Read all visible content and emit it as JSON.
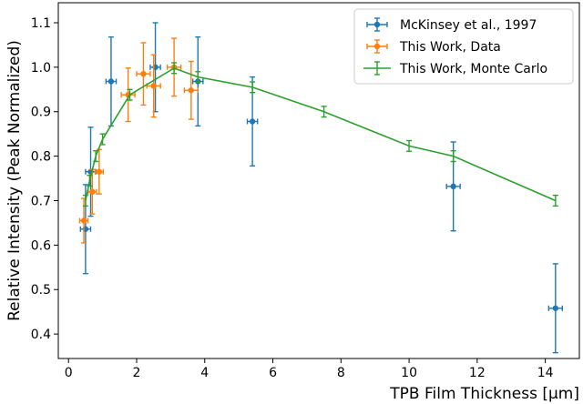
{
  "chart_data": {
    "type": "scatter",
    "title": "",
    "xlabel": "TPB Film Thickness [μm]",
    "ylabel": "Relative Intensity (Peak Normalized)",
    "xlim": [
      -0.3,
      15.0
    ],
    "ylim": [
      0.345,
      1.145
    ],
    "xticks": [
      0,
      2,
      4,
      6,
      8,
      10,
      12,
      14
    ],
    "yticks": [
      0.4,
      0.5,
      0.6,
      0.7,
      0.8,
      0.9,
      1.0,
      1.1
    ],
    "xtick_labels": [
      "0",
      "2",
      "4",
      "6",
      "8",
      "10",
      "12",
      "14"
    ],
    "ytick_labels": [
      "0.4",
      "0.5",
      "0.6",
      "0.7",
      "0.8",
      "0.9",
      "1.0",
      "1.1"
    ],
    "grid": false,
    "legend_position": "top-right",
    "series": [
      {
        "name": "McKinsey et al., 1997",
        "color": "#1f77b4",
        "style": "markers",
        "x": [
          0.5,
          0.65,
          1.25,
          2.55,
          3.8,
          5.4,
          11.3,
          14.3
        ],
        "y": [
          0.636,
          0.765,
          0.968,
          1.0,
          0.968,
          0.878,
          0.732,
          0.458
        ],
        "yerr": [
          0.1,
          0.1,
          0.1,
          0.1,
          0.1,
          0.1,
          0.1,
          0.1
        ],
        "xerr": [
          0.15,
          0.15,
          0.15,
          0.15,
          0.15,
          0.15,
          0.2,
          0.2
        ]
      },
      {
        "name": "This Work, Data",
        "color": "#ff7f0e",
        "style": "markers",
        "x": [
          0.45,
          0.7,
          0.9,
          1.75,
          2.2,
          2.5,
          3.1,
          3.6
        ],
        "y": [
          0.655,
          0.72,
          0.765,
          0.938,
          0.985,
          0.958,
          1.0,
          0.948
        ],
        "yerr": [
          0.05,
          0.05,
          0.05,
          0.06,
          0.07,
          0.07,
          0.065,
          0.065
        ],
        "xerr": [
          0.12,
          0.12,
          0.12,
          0.2,
          0.2,
          0.2,
          0.2,
          0.2
        ]
      },
      {
        "name": "This Work, Monte Carlo",
        "color": "#2ca02c",
        "style": "line",
        "x": [
          0.5,
          0.62,
          0.8,
          1.0,
          1.8,
          3.1,
          3.8,
          5.4,
          7.5,
          10.0,
          11.3,
          14.3
        ],
        "y": [
          0.7,
          0.745,
          0.8,
          0.838,
          0.938,
          0.998,
          0.978,
          0.955,
          0.9,
          0.823,
          0.8,
          0.7
        ],
        "yerr": [
          0.012,
          0.012,
          0.012,
          0.012,
          0.012,
          0.012,
          0.012,
          0.012,
          0.012,
          0.012,
          0.012,
          0.012
        ]
      }
    ]
  }
}
